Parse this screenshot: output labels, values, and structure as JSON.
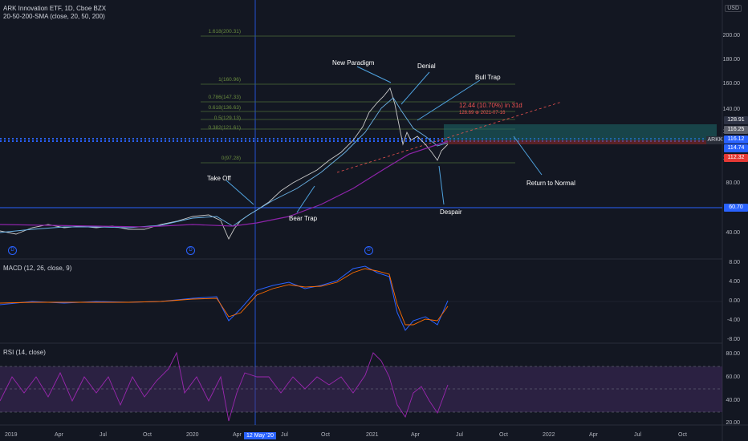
{
  "legend": {
    "symbol": "ARK Innovation ETF, 1D, Cboe BZX",
    "indicator": "20-50-200-SMA (close, 20, 50, 200)",
    "macd": "MACD (12, 26, close, 9)",
    "rsi": "RSI (14, close)"
  },
  "currency": "USD",
  "price_axis": [
    "200.00",
    "180.00",
    "160.00",
    "140.00",
    "120.00",
    "100.00",
    "80.00",
    "60.00",
    "40.00"
  ],
  "price_tags": [
    {
      "label": "128.91",
      "color": "#2e3345"
    },
    {
      "label": "116.25",
      "color": "#5d606b"
    },
    {
      "label": "116.12",
      "color": "#2962ff"
    },
    {
      "label": "114.74",
      "color": "#2962ff"
    },
    {
      "label": "112.32",
      "color": "#e53935"
    },
    {
      "label": "60.70",
      "color": "#2962ff"
    }
  ],
  "symbol_tag": "ARKK",
  "macd_axis": [
    "8.00",
    "4.00",
    "0.00",
    "-4.00",
    "-8.00"
  ],
  "rsi_axis": [
    "80.00",
    "60.00",
    "40.00",
    "20.00"
  ],
  "fib_levels": [
    "1.618(200.31)",
    "1(160.96)",
    "0.786(147.33)",
    "0.618(136.63)",
    "0.5(129.13)",
    "0.382(121.61)",
    "0(97.28)"
  ],
  "projection": {
    "headline": "12.44 (10.70%) in 31d",
    "sub": "128.69 ⊕ 2021-07-16"
  },
  "annotations": [
    "New Paradigm",
    "Denial",
    "Bull Trap",
    "Take Off",
    "Bear Trap",
    "Despair",
    "Return to Normal"
  ],
  "x_axis": [
    "2019",
    "Apr",
    "Jul",
    "Oct",
    "2020",
    "Apr",
    "12 May '20",
    "Jul",
    "Oct",
    "2021",
    "Apr",
    "Jul",
    "Oct",
    "2022",
    "Apr",
    "Jul",
    "Oct"
  ],
  "dividend_marker": "D"
}
